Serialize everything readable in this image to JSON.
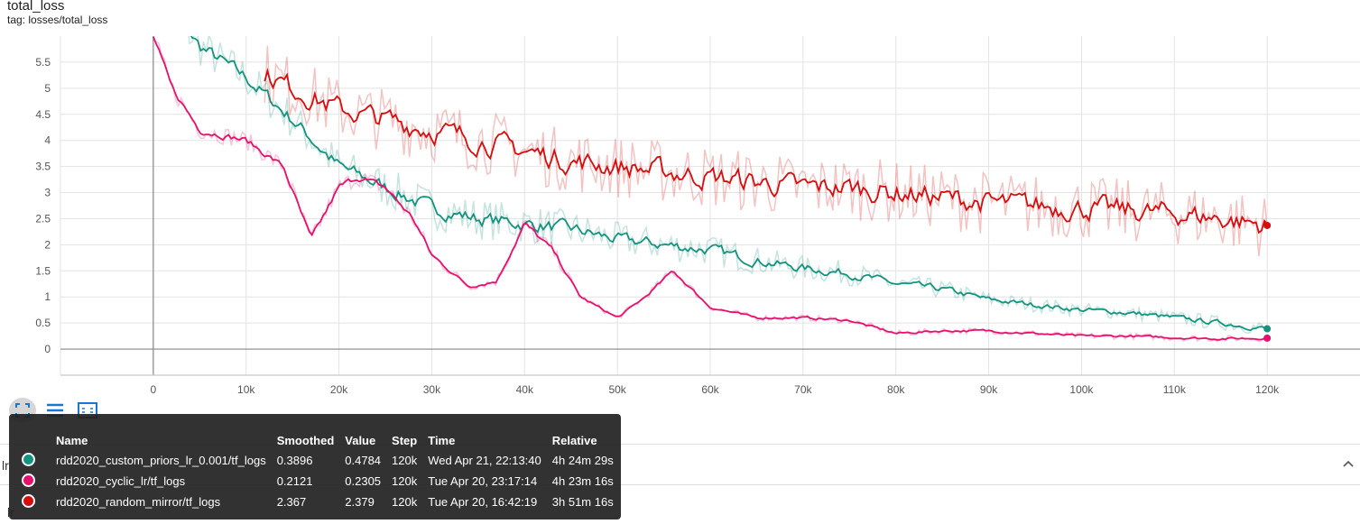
{
  "header": {
    "title": "total_loss",
    "tag": "tag: losses/total_loss"
  },
  "chart_data": {
    "type": "line",
    "title": "total_loss",
    "xlabel": "",
    "ylabel": "",
    "xlim": [
      -10000,
      130000
    ],
    "ylim": [
      -0.5,
      6.0
    ],
    "x_ticks": [
      0,
      10000,
      20000,
      30000,
      40000,
      50000,
      60000,
      70000,
      80000,
      90000,
      100000,
      110000,
      120000
    ],
    "x_tick_labels": [
      "0",
      "10k",
      "20k",
      "30k",
      "40k",
      "50k",
      "60k",
      "70k",
      "80k",
      "90k",
      "100k",
      "110k",
      "120k"
    ],
    "y_ticks": [
      0,
      0.5,
      1,
      1.5,
      2,
      2.5,
      3,
      3.5,
      4,
      4.5,
      5,
      5.5
    ],
    "y_tick_labels": [
      "0",
      "0.5",
      "1",
      "1.5",
      "2",
      "2.5",
      "3",
      "3.5",
      "4",
      "4.5",
      "5",
      "5.5"
    ],
    "grid": true,
    "series": [
      {
        "name": "rdd2020_custom_priors_lr_0.001/tf_logs",
        "color": "#12947f",
        "x": [
          0,
          5000,
          10000,
          15000,
          20000,
          25000,
          30000,
          35000,
          40000,
          45000,
          50000,
          55000,
          60000,
          65000,
          70000,
          75000,
          80000,
          85000,
          90000,
          95000,
          100000,
          105000,
          110000,
          115000,
          120000
        ],
        "values": [
          7.0,
          5.8,
          5.2,
          4.4,
          3.5,
          3.1,
          2.7,
          2.5,
          2.4,
          2.3,
          2.1,
          2.0,
          1.9,
          1.7,
          1.55,
          1.45,
          1.25,
          1.15,
          0.95,
          0.85,
          0.75,
          0.7,
          0.6,
          0.5,
          0.39
        ]
      },
      {
        "name": "rdd2020_cyclic_lr/tf_logs",
        "color": "#e8106d",
        "x": [
          0,
          2000,
          5000,
          10000,
          14000,
          17000,
          20000,
          22000,
          25000,
          28000,
          30000,
          34000,
          37000,
          40000,
          43000,
          46000,
          50000,
          53000,
          56000,
          60000,
          65000,
          70000,
          75000,
          80000,
          85000,
          90000,
          95000,
          100000,
          105000,
          110000,
          115000,
          120000
        ],
        "values": [
          6.0,
          5.0,
          4.2,
          4.0,
          3.5,
          2.1,
          3.1,
          3.3,
          3.1,
          2.5,
          1.8,
          1.2,
          1.3,
          2.4,
          1.9,
          1.0,
          0.6,
          1.0,
          1.5,
          0.8,
          0.6,
          0.6,
          0.55,
          0.3,
          0.35,
          0.35,
          0.3,
          0.25,
          0.25,
          0.22,
          0.2,
          0.21
        ]
      },
      {
        "name": "rdd2020_random_mirror/tf_logs",
        "color": "#d80c0c",
        "x": [
          12000,
          15000,
          20000,
          25000,
          30000,
          35000,
          40000,
          45000,
          50000,
          55000,
          60000,
          65000,
          70000,
          75000,
          80000,
          85000,
          90000,
          95000,
          100000,
          105000,
          110000,
          115000,
          120000
        ],
        "values": [
          5.3,
          5.0,
          4.6,
          4.4,
          4.2,
          4.0,
          3.8,
          3.6,
          3.5,
          3.4,
          3.3,
          3.2,
          3.1,
          3.1,
          3.0,
          2.9,
          2.8,
          2.75,
          2.7,
          2.65,
          2.6,
          2.5,
          2.37
        ]
      }
    ]
  },
  "toolbar": {
    "icons": [
      "fit-domain-icon",
      "toggle-log-icon",
      "download-icon"
    ]
  },
  "lower": {
    "section_label_1": "lr",
    "section_label_2": "lr"
  },
  "tooltip": {
    "headers": {
      "name": "Name",
      "smoothed": "Smoothed",
      "value": "Value",
      "step": "Step",
      "time": "Time",
      "relative": "Relative"
    },
    "rows": [
      {
        "color": "#12947f",
        "name": "rdd2020_custom_priors_lr_0.001/tf_logs",
        "smoothed": "0.3896",
        "value": "0.4784",
        "step": "120k",
        "time": "Wed Apr 21, 22:13:40",
        "relative": "4h 24m 29s"
      },
      {
        "color": "#e8106d",
        "name": "rdd2020_cyclic_lr/tf_logs",
        "smoothed": "0.2121",
        "value": "0.2305",
        "step": "120k",
        "time": "Tue Apr 20, 23:17:14",
        "relative": "4h 23m 16s"
      },
      {
        "color": "#d80c0c",
        "name": "rdd2020_random_mirror/tf_logs",
        "smoothed": "2.367",
        "value": "2.379",
        "step": "120k",
        "time": "Tue Apr 20, 16:42:19",
        "relative": "3h 51m 16s"
      }
    ]
  }
}
